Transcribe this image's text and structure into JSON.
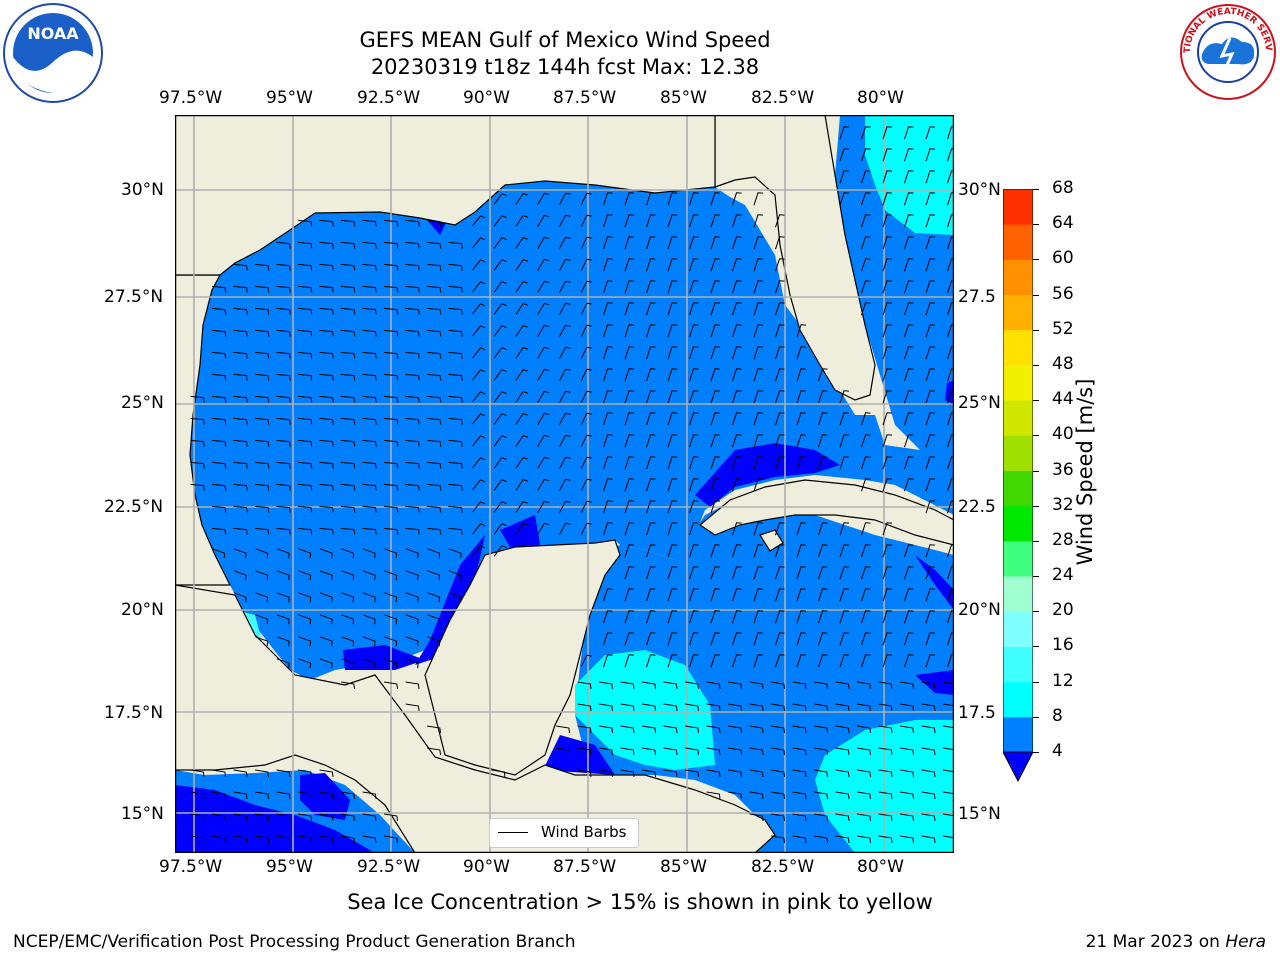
{
  "title_line1": "GEFS MEAN Gulf of Mexico Wind Speed",
  "title_line2": "20230319 t18z 144h fcst   Max: 12.38",
  "lon_ticks": [
    "97.5°W",
    "95°W",
    "92.5°W",
    "90°W",
    "87.5°W",
    "85°W",
    "82.5°W",
    "80°W"
  ],
  "lat_ticks": [
    "30°N",
    "27.5°N",
    "25°N",
    "22.5°N",
    "20°N",
    "17.5°N",
    "15°N"
  ],
  "lat_ticks_right": [
    "30°N",
    "27.5",
    "25°N",
    "22.5",
    "20°N",
    "17.5",
    "15°N"
  ],
  "colorbar": {
    "label": "Wind Speed [m/s]",
    "levels": [
      "4",
      "8",
      "12",
      "16",
      "20",
      "24",
      "28",
      "32",
      "36",
      "40",
      "44",
      "48",
      "52",
      "56",
      "60",
      "64",
      "68"
    ],
    "colors": [
      "#0080ff",
      "#00ffff",
      "#40ffff",
      "#80ffff",
      "#a0ffd0",
      "#40ff80",
      "#00e800",
      "#40d800",
      "#a0e000",
      "#d0e800",
      "#f0f000",
      "#ffe000",
      "#ffb000",
      "#ff9000",
      "#ff6000",
      "#ff3000",
      "#ff0000"
    ],
    "under_color": "#0000ff"
  },
  "map": {
    "extent": {
      "lon_min": -98.0,
      "lon_max": -78.2,
      "lat_min": 14.0,
      "lat_max": 31.8
    },
    "land_color": "#efeedd",
    "sea_color": "#0080ff",
    "low_color": "#0000ff",
    "high_color": "#00ffff",
    "grid_color": "#b0b0b0"
  },
  "legend_label": "Wind Barbs",
  "ice_note": "Sea Ice Concentration > 15% is shown in pink to yellow",
  "credit": "NCEP/EMC/Verification Post Processing Product Generation Branch",
  "date_prefix": "21 Mar 2023 on ",
  "date_machine": "Hera",
  "logos": {
    "left": "NOAA",
    "right": "NATIONAL WEATHER SERVICE"
  }
}
